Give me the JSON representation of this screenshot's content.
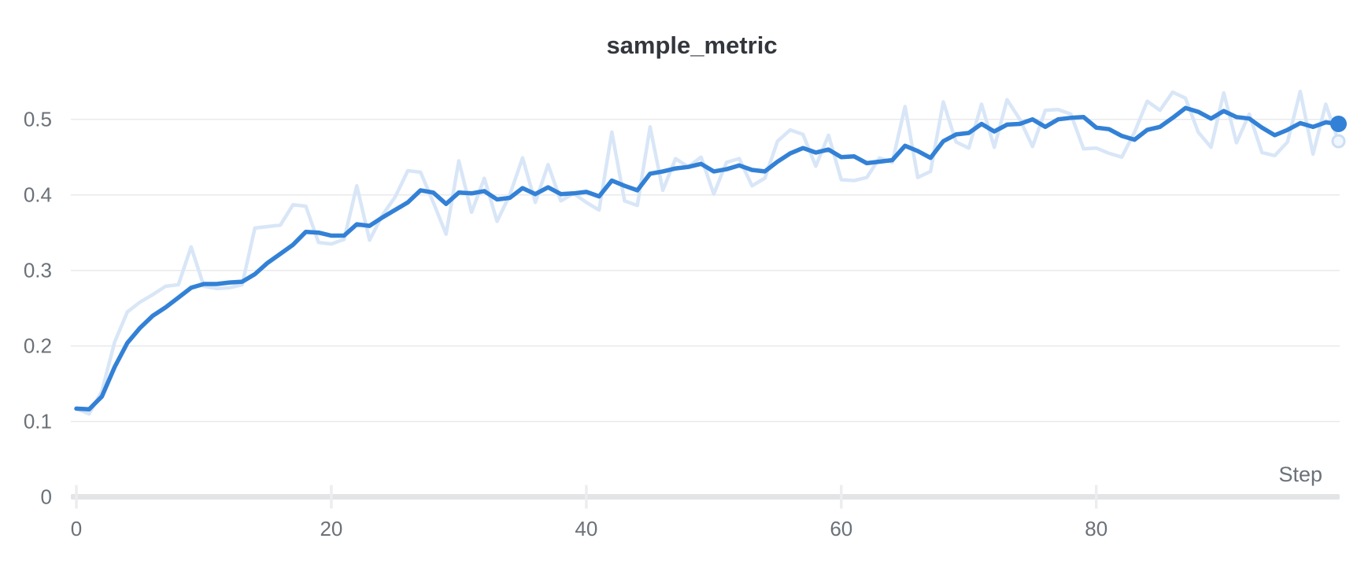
{
  "chart": {
    "title": "sample_metric",
    "xlabel": "Step",
    "x_tick_labels": [
      "0",
      "20",
      "40",
      "60",
      "80"
    ],
    "y_tick_labels": [
      "0",
      "0.1",
      "0.2",
      "0.3",
      "0.4",
      "0.5"
    ],
    "colors": {
      "accent": "#3381d6",
      "raw_line": "#d8e6f7",
      "end_dot": "#3381d6",
      "raw_end_dot_stroke": "#cbdff5",
      "raw_end_dot_fill": "#f2f7fd",
      "grid": "#e9eaec",
      "axis_bar": "#e3e4e6",
      "axis_tick": "#ededef",
      "title_text": "#33373d",
      "tick_text": "#6b7178",
      "background": "#ffffff"
    }
  },
  "chart_data": {
    "type": "line",
    "title": "sample_metric",
    "xlabel": "Step",
    "ylabel": "",
    "xlim": [
      0,
      99
    ],
    "ylim": [
      0,
      0.55
    ],
    "x_ticks": [
      0,
      20,
      40,
      60,
      80
    ],
    "y_ticks": [
      0,
      0.1,
      0.2,
      0.3,
      0.4,
      0.5
    ],
    "grid": "horizontal",
    "legend": "none",
    "x": [
      0,
      1,
      2,
      3,
      4,
      5,
      6,
      7,
      8,
      9,
      10,
      11,
      12,
      13,
      14,
      15,
      16,
      17,
      18,
      19,
      20,
      21,
      22,
      23,
      24,
      25,
      26,
      27,
      28,
      29,
      30,
      31,
      32,
      33,
      34,
      35,
      36,
      37,
      38,
      39,
      40,
      41,
      42,
      43,
      44,
      45,
      46,
      47,
      48,
      49,
      50,
      51,
      52,
      53,
      54,
      55,
      56,
      57,
      58,
      59,
      60,
      61,
      62,
      63,
      64,
      65,
      66,
      67,
      68,
      69,
      70,
      71,
      72,
      73,
      74,
      75,
      76,
      77,
      78,
      79,
      80,
      81,
      82,
      83,
      84,
      85,
      86,
      87,
      88,
      89,
      90,
      91,
      92,
      93,
      94,
      95,
      96,
      97,
      98,
      99
    ],
    "series": [
      {
        "name": "sample_metric",
        "role": "raw",
        "values": [
          0.117,
          0.11,
          0.14,
          0.205,
          0.245,
          0.258,
          0.268,
          0.279,
          0.281,
          0.331,
          0.279,
          0.276,
          0.277,
          0.281,
          0.356,
          0.358,
          0.36,
          0.387,
          0.385,
          0.337,
          0.335,
          0.341,
          0.412,
          0.34,
          0.373,
          0.397,
          0.432,
          0.43,
          0.39,
          0.348,
          0.445,
          0.377,
          0.422,
          0.365,
          0.4,
          0.449,
          0.39,
          0.44,
          0.392,
          0.402,
          0.39,
          0.38,
          0.483,
          0.392,
          0.386,
          0.49,
          0.406,
          0.448,
          0.437,
          0.45,
          0.401,
          0.443,
          0.448,
          0.412,
          0.422,
          0.471,
          0.486,
          0.48,
          0.438,
          0.479,
          0.42,
          0.419,
          0.423,
          0.449,
          0.443,
          0.517,
          0.423,
          0.431,
          0.523,
          0.47,
          0.462,
          0.52,
          0.463,
          0.526,
          0.5,
          0.464,
          0.512,
          0.513,
          0.507,
          0.461,
          0.462,
          0.455,
          0.45,
          0.483,
          0.524,
          0.512,
          0.536,
          0.528,
          0.483,
          0.463,
          0.535,
          0.469,
          0.507,
          0.456,
          0.452,
          0.47,
          0.537,
          0.454,
          0.52,
          0.471
        ]
      },
      {
        "name": "sample_metric (smoothed)",
        "role": "smoothed",
        "values": [
          0.117,
          0.116,
          0.133,
          0.172,
          0.204,
          0.224,
          0.24,
          0.251,
          0.264,
          0.277,
          0.282,
          0.282,
          0.284,
          0.285,
          0.295,
          0.31,
          0.322,
          0.334,
          0.351,
          0.35,
          0.346,
          0.346,
          0.361,
          0.359,
          0.37,
          0.38,
          0.39,
          0.406,
          0.403,
          0.388,
          0.403,
          0.402,
          0.405,
          0.394,
          0.396,
          0.409,
          0.401,
          0.41,
          0.401,
          0.402,
          0.404,
          0.398,
          0.419,
          0.412,
          0.406,
          0.428,
          0.431,
          0.435,
          0.437,
          0.441,
          0.431,
          0.434,
          0.439,
          0.433,
          0.431,
          0.444,
          0.455,
          0.462,
          0.456,
          0.46,
          0.45,
          0.451,
          0.442,
          0.444,
          0.446,
          0.465,
          0.458,
          0.449,
          0.471,
          0.48,
          0.482,
          0.494,
          0.484,
          0.493,
          0.494,
          0.5,
          0.49,
          0.5,
          0.502,
          0.503,
          0.489,
          0.487,
          0.478,
          0.473,
          0.486,
          0.49,
          0.502,
          0.515,
          0.51,
          0.501,
          0.511,
          0.503,
          0.501,
          0.489,
          0.479,
          0.486,
          0.495,
          0.49,
          0.496,
          0.494
        ]
      }
    ]
  }
}
